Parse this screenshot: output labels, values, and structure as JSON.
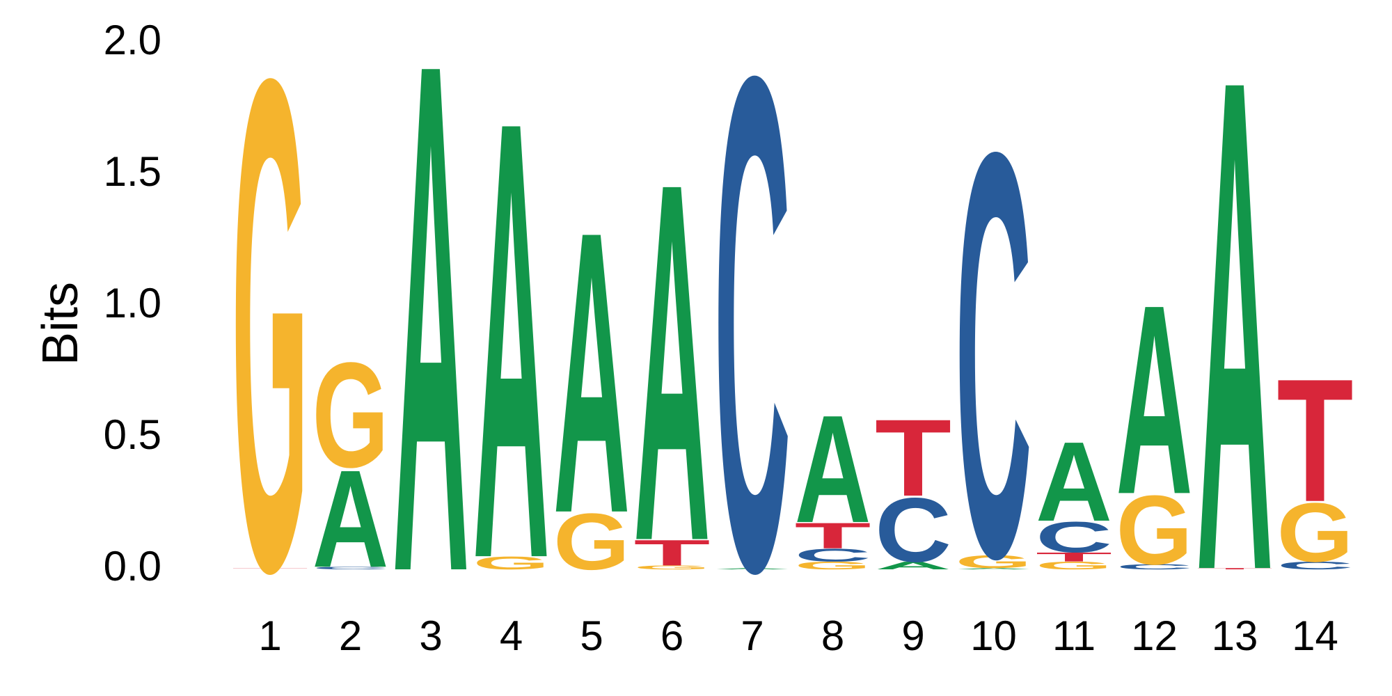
{
  "chart_data": {
    "type": "sequence-logo",
    "ylabel": "Bits",
    "ylim": [
      0,
      2.0
    ],
    "y_ticks": [
      "0.0",
      "0.5",
      "1.0",
      "1.5",
      "2.0"
    ],
    "x_ticks": [
      "1",
      "2",
      "3",
      "4",
      "5",
      "6",
      "7",
      "8",
      "9",
      "10",
      "11",
      "12",
      "13",
      "14"
    ],
    "colors": {
      "A": "#12964a",
      "C": "#285b9a",
      "G": "#f5b42d",
      "T": "#d8263a"
    },
    "positions": [
      {
        "pos": "1",
        "letters": [
          {
            "base": "T",
            "bits": 0.005
          },
          {
            "base": "G",
            "bits": 1.92
          }
        ]
      },
      {
        "pos": "2",
        "letters": [
          {
            "base": "C",
            "bits": 0.01
          },
          {
            "base": "A",
            "bits": 0.38
          },
          {
            "base": "G",
            "bits": 0.41
          }
        ]
      },
      {
        "pos": "3",
        "letters": [
          {
            "base": "A",
            "bits": 1.99
          }
        ]
      },
      {
        "pos": "4",
        "letters": [
          {
            "base": "G",
            "bits": 0.05
          },
          {
            "base": "A",
            "bits": 1.71
          }
        ]
      },
      {
        "pos": "5",
        "letters": [
          {
            "base": "G",
            "bits": 0.22
          },
          {
            "base": "A",
            "bits": 1.1
          }
        ]
      },
      {
        "pos": "6",
        "letters": [
          {
            "base": "G",
            "bits": 0.015
          },
          {
            "base": "T",
            "bits": 0.1
          },
          {
            "base": "A",
            "bits": 1.4
          }
        ]
      },
      {
        "pos": "7",
        "letters": [
          {
            "base": "A",
            "bits": 0.005
          },
          {
            "base": "C",
            "bits": 1.93
          }
        ]
      },
      {
        "pos": "8",
        "letters": [
          {
            "base": "G",
            "bits": 0.03
          },
          {
            "base": "C",
            "bits": 0.05
          },
          {
            "base": "T",
            "bits": 0.1
          },
          {
            "base": "A",
            "bits": 0.42
          }
        ]
      },
      {
        "pos": "9",
        "letters": [
          {
            "base": "A",
            "bits": 0.03
          },
          {
            "base": "C",
            "bits": 0.25
          },
          {
            "base": "T",
            "bits": 0.3
          }
        ]
      },
      {
        "pos": "10",
        "letters": [
          {
            "base": "A",
            "bits": 0.005
          },
          {
            "base": "G",
            "bits": 0.05
          },
          {
            "base": "C",
            "bits": 1.58
          }
        ]
      },
      {
        "pos": "11",
        "letters": [
          {
            "base": "G",
            "bits": 0.03
          },
          {
            "base": "T",
            "bits": 0.035
          },
          {
            "base": "C",
            "bits": 0.12
          },
          {
            "base": "A",
            "bits": 0.31
          }
        ]
      },
      {
        "pos": "12",
        "letters": [
          {
            "base": "C",
            "bits": 0.02
          },
          {
            "base": "G",
            "bits": 0.27
          },
          {
            "base": "A",
            "bits": 0.74
          }
        ]
      },
      {
        "pos": "13",
        "letters": [
          {
            "base": "T",
            "bits": 0.005
          },
          {
            "base": "A",
            "bits": 1.92
          }
        ]
      },
      {
        "pos": "14",
        "letters": [
          {
            "base": "C",
            "bits": 0.03
          },
          {
            "base": "G",
            "bits": 0.23
          },
          {
            "base": "T",
            "bits": 0.48
          }
        ]
      }
    ]
  }
}
